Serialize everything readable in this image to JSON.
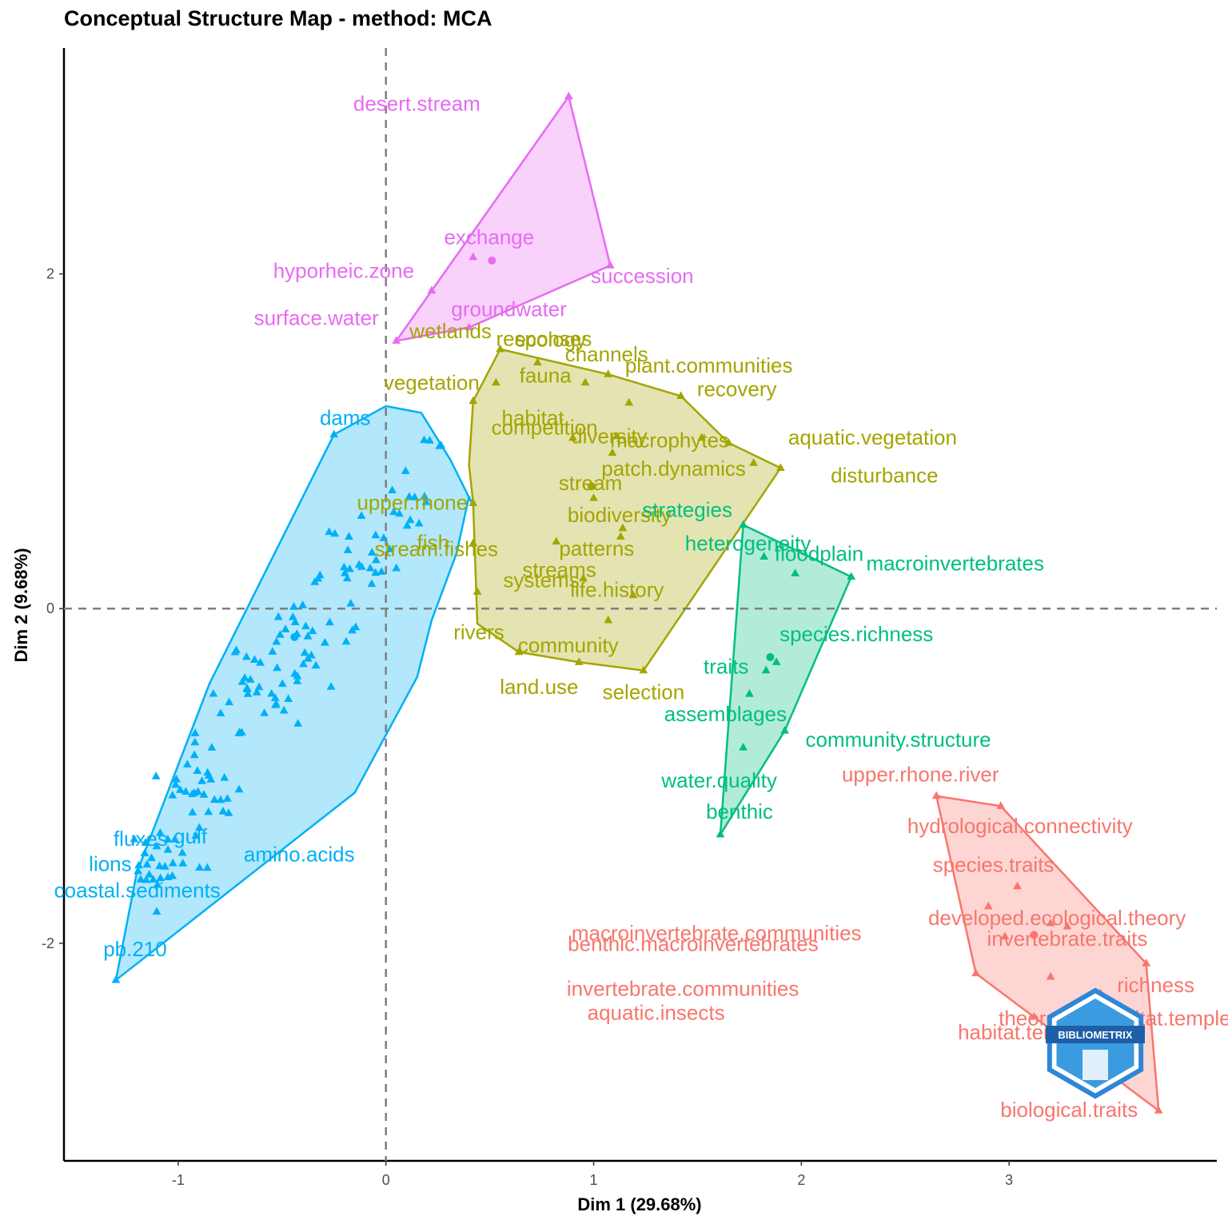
{
  "chart_data": {
    "type": "scatter",
    "title": "Conceptual Structure Map - method: MCA",
    "xlabel": "Dim 1 (29.68%)",
    "ylabel": "Dim 2 (9.68%)",
    "xlim": [
      -1.55,
      4.0
    ],
    "ylim": [
      -3.3,
      3.35
    ],
    "xticks": [
      -1,
      0,
      1,
      2,
      3
    ],
    "yticks": [
      -2,
      0,
      2
    ],
    "grid": false,
    "reference_lines": {
      "x": 0,
      "y": 0
    },
    "watermark": "BIBLIOMETRIX",
    "clusters": [
      {
        "id": 1,
        "color": "#F8766D",
        "hull": [
          [
            2.65,
            -1.12
          ],
          [
            2.96,
            -1.18
          ],
          [
            3.66,
            -2.12
          ],
          [
            3.72,
            -3.0
          ],
          [
            3.12,
            -2.44
          ],
          [
            2.84,
            -2.18
          ]
        ],
        "centroid": [
          3.12,
          -1.95
        ],
        "points": [
          {
            "label": "upper.rhone.river",
            "x": 2.65,
            "y": -1.12
          },
          {
            "label": "hydrological.connectivity",
            "x": 2.96,
            "y": -1.18
          },
          {
            "label": "species.traits",
            "x": 3.04,
            "y": -1.66
          },
          {
            "label": "developed.ecological.theory",
            "x": 3.2,
            "y": -1.88
          },
          {
            "label": "macroinvertebrate.communities",
            "x": 2.9,
            "y": -1.78
          },
          {
            "label": "benthic.macroinvertebrates",
            "x": 2.98,
            "y": -1.96
          },
          {
            "label": "invertebrate.traits",
            "x": 3.28,
            "y": -1.9
          },
          {
            "label": "invertebrate.communities",
            "x": 3.2,
            "y": -2.2
          },
          {
            "label": "aquatic.insects",
            "x": 2.84,
            "y": -2.18
          },
          {
            "label": "richness",
            "x": 3.66,
            "y": -2.12
          },
          {
            "label": "theoretical.habitat.templets",
            "x": 3.44,
            "y": -2.3
          },
          {
            "label": "habitat.templet",
            "x": 3.12,
            "y": -2.44
          },
          {
            "label": "biological.traits",
            "x": 3.72,
            "y": -3.0
          }
        ]
      },
      {
        "id": 2,
        "color": "#A3A500",
        "hull": [
          [
            0.55,
            1.55
          ],
          [
            1.07,
            1.4
          ],
          [
            1.42,
            1.27
          ],
          [
            1.65,
            0.99
          ],
          [
            1.9,
            0.84
          ],
          [
            1.24,
            -0.37
          ],
          [
            0.93,
            -0.32
          ],
          [
            0.64,
            -0.26
          ],
          [
            0.44,
            -0.09
          ],
          [
            0.42,
            0.63
          ],
          [
            0.4,
            0.86
          ],
          [
            0.42,
            1.24
          ]
        ],
        "centroid": [
          0.99,
          0.73
        ],
        "points": [
          {
            "label": "channels",
            "x": 1.07,
            "y": 1.4
          },
          {
            "label": "plant.communities",
            "x": 1.17,
            "y": 1.23
          },
          {
            "label": "wetlands",
            "x": 0.55,
            "y": 1.55
          },
          {
            "label": "ecology",
            "x": 0.73,
            "y": 1.47
          },
          {
            "label": "fauna",
            "x": 0.96,
            "y": 1.35
          },
          {
            "label": "vegetation",
            "x": 0.42,
            "y": 1.24
          },
          {
            "label": "recovery",
            "x": 1.42,
            "y": 1.27
          },
          {
            "label": "responses",
            "x": 0.53,
            "y": 1.35
          },
          {
            "label": "competition",
            "x": 1.11,
            "y": 1.03
          },
          {
            "label": "macrophytes",
            "x": 1.52,
            "y": 1.02
          },
          {
            "label": "aquatic.vegetation",
            "x": 1.65,
            "y": 0.99
          },
          {
            "label": "habitat",
            "x": 0.9,
            "y": 1.02
          },
          {
            "label": "diversity",
            "x": 1.09,
            "y": 0.93
          },
          {
            "label": "disturbance",
            "x": 1.9,
            "y": 0.84
          },
          {
            "label": "patch.dynamics",
            "x": 1.77,
            "y": 0.87
          },
          {
            "label": "stream",
            "x": 1.0,
            "y": 0.66
          },
          {
            "label": "biodiversity",
            "x": 1.14,
            "y": 0.48
          },
          {
            "label": "upper.rhone",
            "x": 0.42,
            "y": 0.63
          },
          {
            "label": "fish",
            "x": 0.42,
            "y": 0.39
          },
          {
            "label": "stream.fishes",
            "x": 0.82,
            "y": 0.4
          },
          {
            "label": "patterns",
            "x": 1.13,
            "y": 0.43
          },
          {
            "label": "systems",
            "x": 0.44,
            "y": 0.1
          },
          {
            "label": "streams",
            "x": 0.95,
            "y": 0.18
          },
          {
            "label": "life.history",
            "x": 1.19,
            "y": 0.08
          },
          {
            "label": "rivers",
            "x": 0.64,
            "y": -0.26
          },
          {
            "label": "community",
            "x": 1.07,
            "y": -0.07
          },
          {
            "label": "land.use",
            "x": 0.93,
            "y": -0.32
          },
          {
            "label": "selection",
            "x": 1.24,
            "y": -0.37
          }
        ]
      },
      {
        "id": 3,
        "color": "#00BF7D",
        "hull": [
          [
            1.72,
            0.5
          ],
          [
            2.24,
            0.19
          ],
          [
            1.92,
            -0.73
          ],
          [
            1.61,
            -1.35
          ]
        ],
        "centroid": [
          1.85,
          -0.29
        ],
        "points": [
          {
            "label": "strategies",
            "x": 1.72,
            "y": 0.5
          },
          {
            "label": "heterogeneity",
            "x": 1.82,
            "y": 0.31
          },
          {
            "label": "macroinvertebrates",
            "x": 2.24,
            "y": 0.19
          },
          {
            "label": "floodplain",
            "x": 1.97,
            "y": 0.21
          },
          {
            "label": "species.richness",
            "x": 1.88,
            "y": -0.32
          },
          {
            "label": "traits",
            "x": 1.83,
            "y": -0.37
          },
          {
            "label": "assemblages",
            "x": 1.75,
            "y": -0.51
          },
          {
            "label": "community.structure",
            "x": 1.92,
            "y": -0.73
          },
          {
            "label": "water.quality",
            "x": 1.72,
            "y": -0.83
          },
          {
            "label": "benthic",
            "x": 1.61,
            "y": -1.35
          }
        ]
      },
      {
        "id": 4,
        "color": "#00B0F6",
        "hull": [
          [
            -0.25,
            1.04
          ],
          [
            0,
            1.21
          ],
          [
            0.17,
            1.17
          ],
          [
            0.31,
            0.89
          ],
          [
            0.41,
            0.64
          ],
          [
            0.4,
            0.67
          ],
          [
            0.34,
            0.33
          ],
          [
            0.22,
            -0.07
          ],
          [
            0.15,
            -0.41
          ],
          [
            -0.15,
            -1.1
          ],
          [
            -1.3,
            -2.22
          ],
          [
            -1.2,
            -1.58
          ],
          [
            -0.85,
            -0.45
          ]
        ],
        "centroid": [
          -0.44,
          -0.17
        ],
        "points": [
          {
            "label": "dams",
            "x": -0.25,
            "y": 1.04
          },
          {
            "label": "fluxes",
            "x": -1.05,
            "y": -1.38
          },
          {
            "label": "gulf",
            "x": -0.98,
            "y": -1.46
          },
          {
            "label": "lions",
            "x": -1.15,
            "y": -1.53
          },
          {
            "label": "amino.acids",
            "x": -0.86,
            "y": -1.55
          },
          {
            "label": "coastal.sediments",
            "x": -1.12,
            "y": -1.62
          },
          {
            "label": "pb.210",
            "x": -1.3,
            "y": -2.22
          }
        ]
      },
      {
        "id": 5,
        "color": "#E76BF3",
        "hull": [
          [
            0.88,
            3.06
          ],
          [
            1.08,
            2.05
          ],
          [
            0.4,
            1.68
          ],
          [
            0.05,
            1.6
          ]
        ],
        "centroid": [
          0.51,
          2.08
        ],
        "points": [
          {
            "label": "desert.stream",
            "x": 0.88,
            "y": 3.06
          },
          {
            "label": "exchange",
            "x": 0.42,
            "y": 2.1
          },
          {
            "label": "hyporheic.zone",
            "x": 0.22,
            "y": 1.9
          },
          {
            "label": "succession",
            "x": 1.08,
            "y": 2.05
          },
          {
            "label": "groundwater",
            "x": 0.4,
            "y": 1.68
          },
          {
            "label": "surface.water",
            "x": 0.05,
            "y": 1.6
          }
        ]
      }
    ]
  }
}
